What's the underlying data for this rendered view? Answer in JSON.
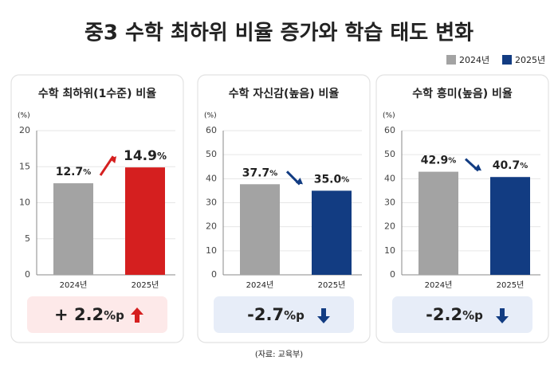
{
  "title": "중3 수학 최하위 비율 증가와 학습 태도 변화",
  "legend": [
    {
      "name": "2024년",
      "color": "#a3a3a3"
    },
    {
      "name": "2025년",
      "color": "#123c82"
    }
  ],
  "source": "(자료: 교육부)",
  "chart_data": [
    {
      "type": "bar",
      "title": "수학 최하위(1수준) 비율",
      "y_label": "(%)",
      "categories": [
        "2024년",
        "2025년"
      ],
      "values": [
        12.7,
        14.9
      ],
      "value_labels": [
        "12.7%",
        "14.9%"
      ],
      "colors": [
        "#a3a3a3",
        "#d51f1f"
      ],
      "ylim": [
        0,
        20
      ],
      "yticks": [
        0,
        5,
        10,
        15,
        20
      ],
      "annotation": "+ 2.2%p"
    },
    {
      "type": "bar",
      "title": "수학 자신감(높음) 비율",
      "y_label": "(%)",
      "categories": [
        "2024년",
        "2025년"
      ],
      "values": [
        37.7,
        35.0
      ],
      "value_labels": [
        "37.7%",
        "35.0%"
      ],
      "colors": [
        "#a3a3a3",
        "#123c82"
      ],
      "ylim": [
        0,
        60
      ],
      "yticks": [
        0,
        10,
        20,
        30,
        40,
        50,
        60
      ],
      "annotation": "-2.7%p"
    },
    {
      "type": "bar",
      "title": "수학 흥미(높음) 비율",
      "y_label": "(%)",
      "categories": [
        "2024년",
        "2025년"
      ],
      "values": [
        42.9,
        40.7
      ],
      "value_labels": [
        "42.9%",
        "40.7%"
      ],
      "colors": [
        "#a3a3a3",
        "#123c82"
      ],
      "ylim": [
        0,
        60
      ],
      "yticks": [
        0,
        10,
        20,
        30,
        40,
        50,
        60
      ],
      "annotation": "-2.2%p"
    }
  ]
}
